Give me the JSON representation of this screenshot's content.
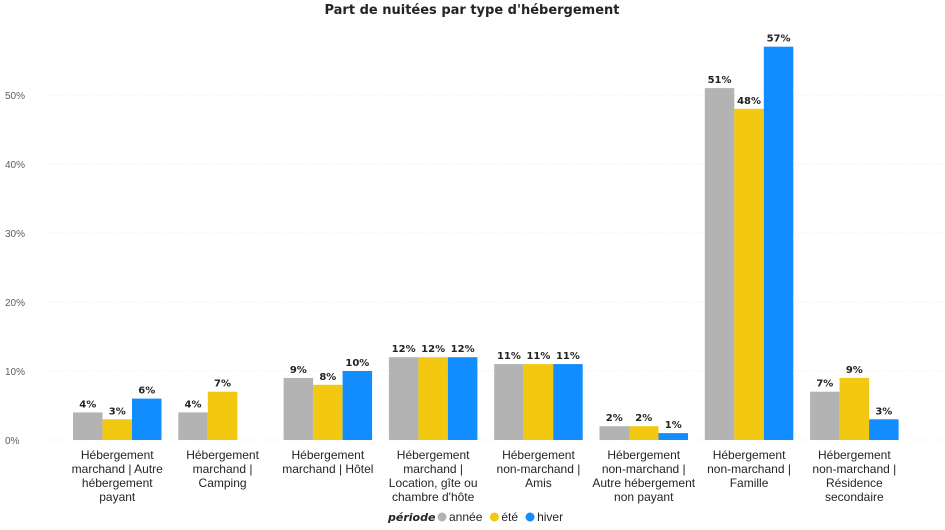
{
  "chart_data": {
    "type": "bar",
    "title": "Part de nuitées par type d'hébergement",
    "xlabel": "",
    "ylabel": "",
    "ylim": [
      0,
      60
    ],
    "yticks": [
      {
        "value": 0,
        "label": "0%"
      },
      {
        "value": 10,
        "label": "10%"
      },
      {
        "value": 20,
        "label": "20%"
      },
      {
        "value": 30,
        "label": "30%"
      },
      {
        "value": 40,
        "label": "40%"
      },
      {
        "value": 50,
        "label": "50%"
      }
    ],
    "grid": true,
    "legend_position": "bottom-center",
    "legend_title": "période",
    "categories": [
      "Hébergement marchand | Autre hébergement payant",
      "Hébergement marchand | Camping",
      "Hébergement marchand | Hôtel",
      "Hébergement marchand | Location, gîte ou chambre d'hôte",
      "Hébergement non-marchand | Amis",
      "Hébergement non-marchand | Autre hébergement non payant",
      "Hébergement non-marchand | Famille",
      "Hébergement non-marchand | Résidence secondaire"
    ],
    "category_lines": [
      [
        "Hébergement",
        "marchand | Autre",
        "hébergement",
        "payant"
      ],
      [
        "Hébergement",
        "marchand |",
        "Camping"
      ],
      [
        "Hébergement",
        "marchand | Hôtel"
      ],
      [
        "Hébergement",
        "marchand |",
        "Location, gîte ou",
        "chambre d'hôte"
      ],
      [
        "Hébergement",
        "non-marchand |",
        "Amis"
      ],
      [
        "Hébergement",
        "non-marchand |",
        "Autre hébergement",
        "non payant"
      ],
      [
        "Hébergement",
        "non-marchand |",
        "Famille"
      ],
      [
        "Hébergement",
        "non-marchand |",
        "Résidence",
        "secondaire"
      ]
    ],
    "series": [
      {
        "name": "année",
        "color": "#b3b3b3",
        "values": [
          4,
          4,
          9,
          12,
          11,
          2,
          51,
          7
        ],
        "labels": [
          "4%",
          "4%",
          "9%",
          "12%",
          "11%",
          "2%",
          "51%",
          "7%"
        ]
      },
      {
        "name": "été",
        "color": "#f2c811",
        "values": [
          3,
          7,
          8,
          12,
          11,
          2,
          48,
          9
        ],
        "labels": [
          "3%",
          "7%",
          "8%",
          "12%",
          "11%",
          "2%",
          "48%",
          "9%"
        ]
      },
      {
        "name": "hiver",
        "color": "#118dff",
        "values": [
          6,
          null,
          10,
          12,
          11,
          1,
          57,
          3
        ],
        "labels": [
          "6%",
          "",
          "10%",
          "12%",
          "11%",
          "1%",
          "57%",
          "3%"
        ]
      }
    ]
  }
}
